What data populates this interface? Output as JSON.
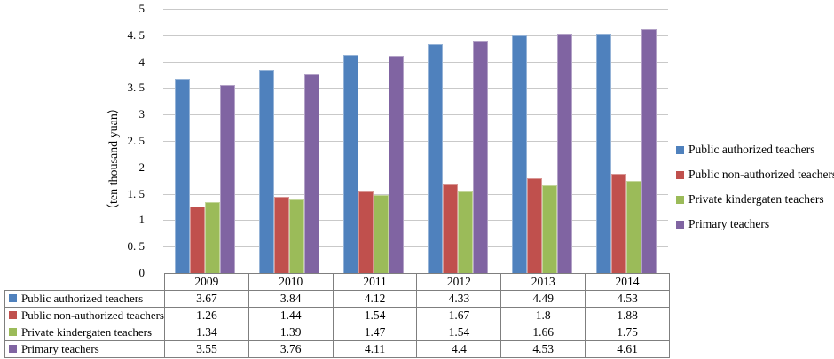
{
  "chart": {
    "ylabel": "（ten thousand yuan）",
    "y_ticks": [
      "5",
      "4. 5",
      "4",
      "3. 5",
      "3",
      "2. 5",
      "2",
      "1. 5",
      "1",
      "0. 5",
      "0"
    ],
    "grid_color": "#C9C9C9"
  },
  "chart_data": {
    "type": "bar",
    "title": "",
    "xlabel": "",
    "ylabel": "（ten thousand yuan）",
    "ylim": [
      0,
      5
    ],
    "ytick_step": 0.5,
    "grid": true,
    "legend_position": "right",
    "categories": [
      "2009",
      "2010",
      "2011",
      "2012",
      "2013",
      "2014"
    ],
    "series": [
      {
        "name": "Public authorized teachers",
        "color": "#4F81BD",
        "border": "#95B3D7",
        "values": [
          3.67,
          3.84,
          4.12,
          4.33,
          4.49,
          4.53
        ]
      },
      {
        "name": "Public non-authorized teachers",
        "color": "#C0504D",
        "border": "#D99694",
        "values": [
          1.26,
          1.44,
          1.54,
          1.67,
          1.8,
          1.88
        ]
      },
      {
        "name": "Private kindergaten teachers",
        "color": "#9BBB59",
        "border": "#C3D69B",
        "values": [
          1.34,
          1.39,
          1.47,
          1.54,
          1.66,
          1.75
        ]
      },
      {
        "name": "Primary teachers",
        "color": "#8064A2",
        "border": "#B3A2C7",
        "values": [
          3.55,
          3.76,
          4.11,
          4.4,
          4.53,
          4.61
        ]
      }
    ]
  },
  "table": {
    "corner": "",
    "columns": [
      "2009",
      "2010",
      "2011",
      "2012",
      "2013",
      "2014"
    ],
    "rows": [
      {
        "label": "Public authorized teachers",
        "color": "#4F81BD",
        "values": [
          "3.67",
          "3.84",
          "4.12",
          "4.33",
          "4.49",
          "4.53"
        ]
      },
      {
        "label": "Public non-authorized teachers",
        "color": "#C0504D",
        "values": [
          "1.26",
          "1.44",
          "1.54",
          "1.67",
          "1.8",
          "1.88"
        ]
      },
      {
        "label": "Private kindergaten teachers",
        "color": "#9BBB59",
        "values": [
          "1.34",
          "1.39",
          "1.47",
          "1.54",
          "1.66",
          "1.75"
        ]
      },
      {
        "label": "Primary teachers",
        "color": "#8064A2",
        "values": [
          "3.55",
          "3.76",
          "4.11",
          "4.4",
          "4.53",
          "4.61"
        ]
      }
    ]
  }
}
